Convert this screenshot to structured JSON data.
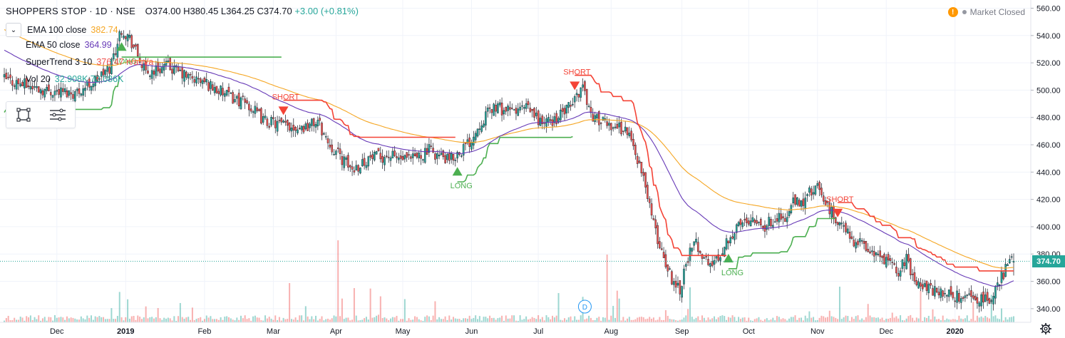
{
  "header": {
    "symbol": "SHOPPERS STOP · 1D · NSE",
    "ohlc": "O374.00  H380.45  L364.25  C374.70",
    "change": "+3.00 (+0.81%)"
  },
  "legend": {
    "ema100": {
      "label": "EMA 100 close",
      "value": "382.74",
      "color": "#f5a623"
    },
    "ema50": {
      "label": "EMA 50 close",
      "value": "364.99",
      "color": "#673ab7"
    },
    "supertrend": {
      "label": "SuperTrend 3 10",
      "value": "376.47  n/a  n/a",
      "color": "#ef5350"
    },
    "volume": {
      "label": "Vol 20",
      "value": "32.908K  72.086K",
      "color": "#26a69a"
    }
  },
  "market_status": "Market Closed",
  "last_price_label": "374.70",
  "colors": {
    "up": "#26a69a",
    "down": "#ef5350",
    "ema100": "#f5a623",
    "ema50": "#673ab7",
    "st_up": "#4caf50",
    "st_down": "#f44336",
    "grid": "#f0f3fa",
    "axis_text": "#131722"
  },
  "icons": {
    "collapse": "chevron-down-icon",
    "rectangle": "rectangle-tool-icon",
    "lines": "horizontal-lines-icon",
    "settings": "gear-icon",
    "warning": "warning-icon",
    "dividend": "D"
  },
  "chart_data": {
    "type": "candlestick",
    "y_ticks": [
      340,
      360,
      380,
      400,
      420,
      440,
      460,
      480,
      500,
      520,
      540,
      560
    ],
    "ylim": [
      330,
      566
    ],
    "x_ticks": [
      "Dec",
      "2019",
      "Feb",
      "Mar",
      "Apr",
      "May",
      "Jun",
      "Jul",
      "Aug",
      "Sep",
      "Oct",
      "Nov",
      "Dec",
      "2020"
    ],
    "anchors": [
      [
        0,
        508
      ],
      [
        20,
        500
      ],
      [
        35,
        498
      ],
      [
        45,
        507
      ],
      [
        52,
        516
      ],
      [
        58,
        545
      ],
      [
        62,
        538
      ],
      [
        70,
        512
      ],
      [
        80,
        518
      ],
      [
        90,
        510
      ],
      [
        100,
        505
      ],
      [
        110,
        496
      ],
      [
        120,
        490
      ],
      [
        128,
        478
      ],
      [
        138,
        474
      ],
      [
        148,
        473
      ],
      [
        155,
        477
      ],
      [
        160,
        462
      ],
      [
        168,
        448
      ],
      [
        172,
        442
      ],
      [
        180,
        450
      ],
      [
        190,
        452
      ],
      [
        200,
        448
      ],
      [
        210,
        456
      ],
      [
        220,
        448
      ],
      [
        230,
        462
      ],
      [
        236,
        478
      ],
      [
        242,
        488
      ],
      [
        250,
        484
      ],
      [
        258,
        487
      ],
      [
        266,
        476
      ],
      [
        272,
        478
      ],
      [
        280,
        488
      ],
      [
        286,
        504
      ],
      [
        290,
        482
      ],
      [
        296,
        476
      ],
      [
        302,
        474
      ],
      [
        308,
        470
      ],
      [
        312,
        455
      ],
      [
        318,
        424
      ],
      [
        322,
        395
      ],
      [
        326,
        378
      ],
      [
        330,
        362
      ],
      [
        334,
        355
      ],
      [
        338,
        378
      ],
      [
        342,
        388
      ],
      [
        348,
        372
      ],
      [
        352,
        375
      ],
      [
        358,
        392
      ],
      [
        364,
        402
      ],
      [
        370,
        408
      ],
      [
        376,
        400
      ],
      [
        382,
        408
      ],
      [
        386,
        404
      ],
      [
        390,
        418
      ],
      [
        394,
        416
      ],
      [
        398,
        425
      ],
      [
        402,
        428
      ],
      [
        408,
        412
      ],
      [
        414,
        400
      ],
      [
        420,
        390
      ],
      [
        426,
        385
      ],
      [
        432,
        378
      ],
      [
        438,
        372
      ],
      [
        442,
        368
      ],
      [
        446,
        376
      ],
      [
        450,
        362
      ],
      [
        456,
        355
      ],
      [
        462,
        352
      ],
      [
        468,
        350
      ],
      [
        474,
        348
      ],
      [
        478,
        350
      ],
      [
        484,
        345
      ],
      [
        488,
        348
      ],
      [
        492,
        360
      ],
      [
        496,
        372
      ],
      [
        499,
        374.7
      ]
    ],
    "last_candle": {
      "open": 374.0,
      "high": 380.45,
      "low": 364.25,
      "close": 374.7
    },
    "annotations": [
      {
        "label": "LONG",
        "type": "long",
        "at": 58
      },
      {
        "label": "SHORT",
        "type": "short",
        "at": 138
      },
      {
        "label": "LONG",
        "type": "long",
        "at": 224
      },
      {
        "label": "SHORT",
        "type": "short",
        "at": 282
      },
      {
        "label": "LONG",
        "type": "long",
        "at": 358
      },
      {
        "label": "SHORT",
        "type": "short",
        "at": 412
      }
    ],
    "dividend_marker": {
      "label": "D"
    },
    "series": [
      {
        "name": "EMA 100 close",
        "last": 382.74
      },
      {
        "name": "EMA 50 close",
        "last": 364.99
      },
      {
        "name": "SuperTrend 3 10",
        "last": 376.47
      },
      {
        "name": "Vol 20",
        "last": "32.908K"
      }
    ]
  }
}
